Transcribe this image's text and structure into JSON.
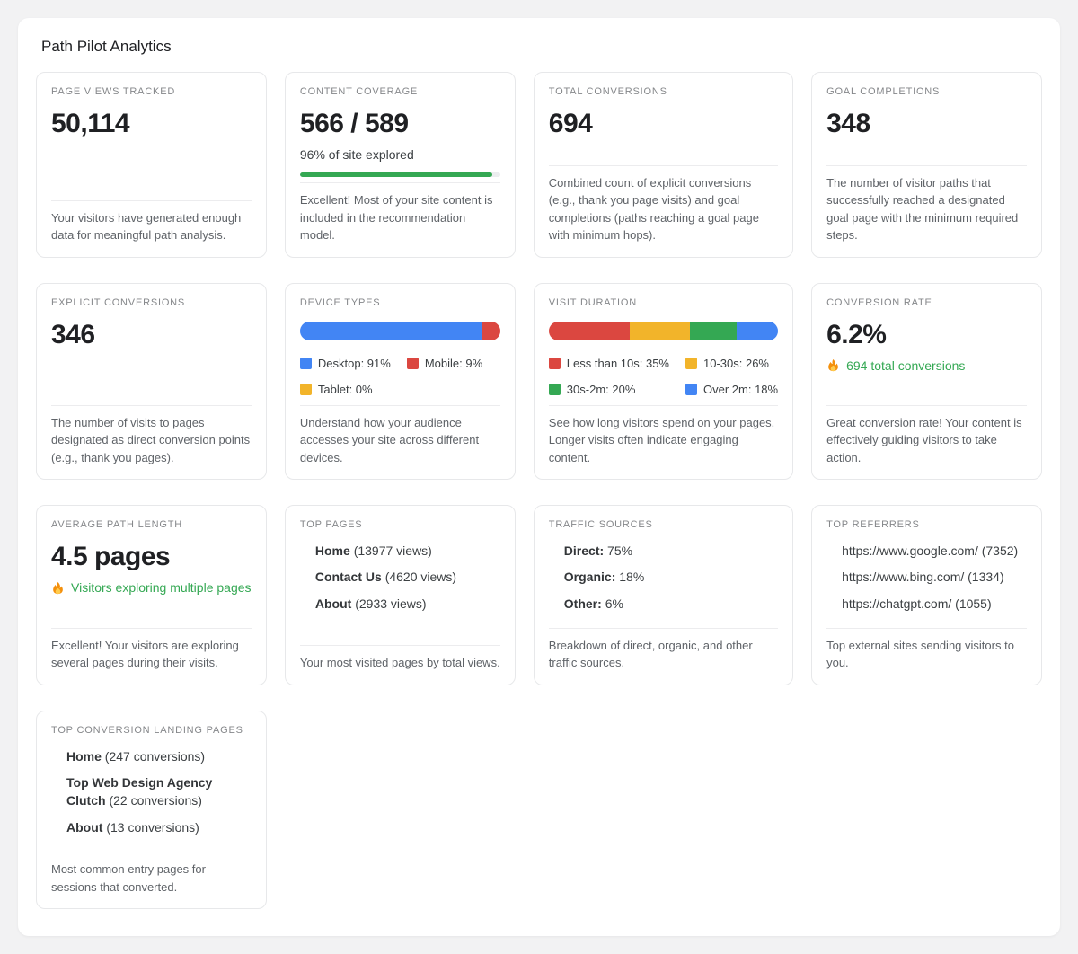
{
  "app": {
    "title": "Path Pilot Analytics"
  },
  "colors": {
    "blue": "#4285F4",
    "red": "#DB4740",
    "yellow": "#F2B42A",
    "green": "#34A853",
    "track": "#ECEDEF"
  },
  "cards": {
    "page_views_tracked": {
      "label": "PAGE VIEWS TRACKED",
      "value": "50,114",
      "description": "Your visitors have generated enough data for meaningful path analysis."
    },
    "content_coverage": {
      "label": "CONTENT COVERAGE",
      "value": "566 / 589",
      "subtitle": "96% of site explored",
      "progress_percent": 96,
      "progress_width": "96%",
      "description": "Excellent! Most of your site content is included in the recommendation model."
    },
    "total_conversions": {
      "label": "TOTAL CONVERSIONS",
      "value": "694",
      "description": "Combined count of explicit conversions (e.g., thank you page visits) and goal completions (paths reaching a goal page with minimum hops)."
    },
    "goal_completions": {
      "label": "GOAL COMPLETIONS",
      "value": "348",
      "description": "The number of visitor paths that successfully reached a designated goal page with the minimum required steps."
    },
    "explicit_conversions": {
      "label": "EXPLICIT CONVERSIONS",
      "value": "346",
      "description": "The number of visits to pages designated as direct conversion points (e.g., thank you pages)."
    },
    "device_types": {
      "label": "DEVICE TYPES",
      "segments": [
        {
          "name": "Desktop",
          "value": 91,
          "color": "#4285F4",
          "legend": "Desktop: 91%"
        },
        {
          "name": "Mobile",
          "value": 9,
          "color": "#DB4740",
          "legend": "Mobile: 9%"
        },
        {
          "name": "Tablet",
          "value": 0,
          "color": "#F2B42A",
          "legend": "Tablet: 0%"
        }
      ],
      "description": "Understand how your audience accesses your site across different devices."
    },
    "visit_duration": {
      "label": "VISIT DURATION",
      "segments": [
        {
          "name": "Less than 10s",
          "value": 35,
          "color": "#DB4740",
          "legend": "Less than 10s: 35%"
        },
        {
          "name": "10-30s",
          "value": 26,
          "color": "#F2B42A",
          "legend": "10-30s: 26%"
        },
        {
          "name": "30s-2m",
          "value": 20,
          "color": "#34A853",
          "legend": "30s-2m: 20%"
        },
        {
          "name": "Over 2m",
          "value": 18,
          "color": "#4285F4",
          "legend": "Over 2m: 18%"
        }
      ],
      "description": "See how long visitors spend on your pages. Longer visits often indicate engaging content."
    },
    "conversion_rate": {
      "label": "CONVERSION RATE",
      "value": "6.2%",
      "highlight": "694 total conversions",
      "description": "Great conversion rate! Your content is effectively guiding visitors to take action."
    },
    "average_path_length": {
      "label": "AVERAGE PATH LENGTH",
      "value": "4.5 pages",
      "highlight": "Visitors exploring multiple pages",
      "description": "Excellent! Your visitors are exploring several pages during their visits."
    },
    "top_pages": {
      "label": "TOP PAGES",
      "items": [
        {
          "name": "Home",
          "detail": "(13977 views)"
        },
        {
          "name": "Contact Us",
          "detail": "(4620 views)"
        },
        {
          "name": "About",
          "detail": "(2933 views)"
        }
      ],
      "description": "Your most visited pages by total views."
    },
    "traffic_sources": {
      "label": "TRAFFIC SOURCES",
      "items": [
        {
          "name": "Direct:",
          "detail": "75%"
        },
        {
          "name": "Organic:",
          "detail": "18%"
        },
        {
          "name": "Other:",
          "detail": "6%"
        }
      ],
      "description": "Breakdown of direct, organic, and other traffic sources."
    },
    "top_referrers": {
      "label": "TOP REFERRERS",
      "items": [
        "https://www.google.com/ (7352)",
        "https://www.bing.com/ (1334)",
        "https://chatgpt.com/ (1055)"
      ],
      "description": "Top external sites sending visitors to you."
    },
    "top_conversion_landing_pages": {
      "label": "TOP CONVERSION LANDING PAGES",
      "items": [
        {
          "name": "Home",
          "detail": "(247 conversions)"
        },
        {
          "name": "Top Web Design Agency Clutch",
          "detail": "(22 conversions)"
        },
        {
          "name": "About",
          "detail": "(13 conversions)"
        }
      ],
      "description": "Most common entry pages for sessions that converted."
    }
  },
  "chart_data": [
    {
      "type": "bar",
      "title": "Device Types",
      "categories": [
        "Desktop",
        "Mobile",
        "Tablet"
      ],
      "values": [
        91,
        9,
        0
      ],
      "unit": "%"
    },
    {
      "type": "bar",
      "title": "Visit Duration",
      "categories": [
        "Less than 10s",
        "10-30s",
        "30s-2m",
        "Over 2m"
      ],
      "values": [
        35,
        26,
        20,
        18
      ],
      "unit": "%"
    },
    {
      "type": "bar",
      "title": "Content Coverage",
      "categories": [
        "Explored"
      ],
      "values": [
        96
      ],
      "unit": "%"
    }
  ]
}
